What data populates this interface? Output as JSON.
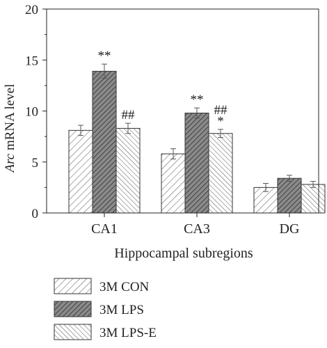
{
  "chart_data": {
    "type": "bar",
    "xlabel": "Hippocampal subregions",
    "ylabel_italic": "Arc",
    "ylabel_rest": " mRNA level",
    "ylim": [
      0,
      20
    ],
    "yticks": [
      0,
      5,
      10,
      15,
      20
    ],
    "categories": [
      "CA1",
      "CA3",
      "DG"
    ],
    "series": [
      {
        "name": "3M CON",
        "values": [
          8.1,
          5.8,
          2.5
        ],
        "errors": [
          0.5,
          0.5,
          0.4
        ],
        "pattern": "light-forward-hatch"
      },
      {
        "name": "3M LPS",
        "values": [
          13.9,
          9.8,
          3.4
        ],
        "errors": [
          0.7,
          0.5,
          0.3
        ],
        "pattern": "dark-forward-hatch"
      },
      {
        "name": "3M LPS-E",
        "values": [
          8.3,
          7.8,
          2.8
        ],
        "errors": [
          0.5,
          0.4,
          0.3
        ],
        "pattern": "light-back-hatch"
      }
    ],
    "annotations": [
      {
        "category": 0,
        "series": 1,
        "lines": [
          "**"
        ]
      },
      {
        "category": 0,
        "series": 2,
        "lines": [
          "##"
        ]
      },
      {
        "category": 1,
        "series": 1,
        "lines": [
          "**"
        ]
      },
      {
        "category": 1,
        "series": 2,
        "lines": [
          "##",
          "*"
        ]
      }
    ],
    "legend_position": "bottom-left",
    "grid": false
  }
}
